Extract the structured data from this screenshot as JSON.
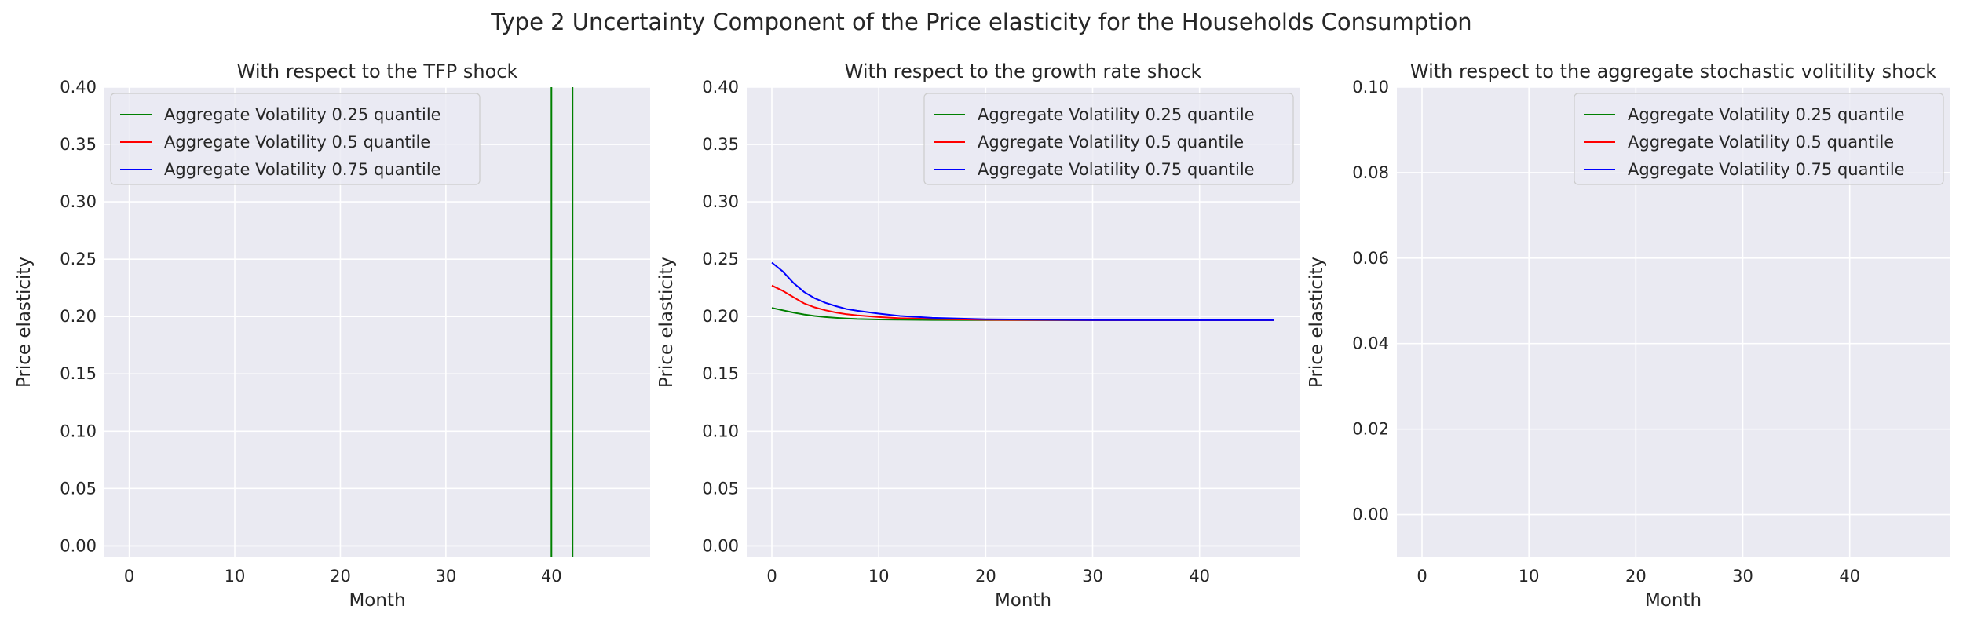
{
  "figure": {
    "title": "Type 2 Uncertainty Component of the Price elasticity for the Households Consumption",
    "background": "#ffffff",
    "axes_background": "#eaeaf2",
    "grid_color": "#ffffff"
  },
  "chart_data": [
    {
      "type": "line",
      "title": "With respect to the TFP shock",
      "xlabel": "Month",
      "ylabel": "Price elasticity",
      "xlim": [
        -2.35,
        49.35
      ],
      "ylim": [
        -0.01,
        0.4
      ],
      "xticks": [
        0,
        10,
        20,
        30,
        40
      ],
      "xtick_labels": [
        "0",
        "10",
        "20",
        "30",
        "40"
      ],
      "yticks": [
        0.0,
        0.05,
        0.1,
        0.15,
        0.2,
        0.25,
        0.3,
        0.35,
        0.4
      ],
      "ytick_labels": [
        "0.00",
        "0.05",
        "0.10",
        "0.15",
        "0.20",
        "0.25",
        "0.30",
        "0.35",
        "0.40"
      ],
      "grid": true,
      "legend": "upper-left",
      "series": [
        {
          "name": "Aggregate Volatility 0.25 quantile",
          "color": "#008000",
          "x": [
            40,
            40,
            42,
            42
          ],
          "y": [
            0.4,
            -0.01,
            -0.01,
            0.4
          ],
          "draw_segments": [
            [
              0,
              1
            ],
            [
              2,
              3
            ]
          ]
        },
        {
          "name": "Aggregate Volatility 0.5 quantile",
          "color": "#ff0000",
          "x": [],
          "y": []
        },
        {
          "name": "Aggregate Volatility 0.75 quantile",
          "color": "#0000ff",
          "x": [],
          "y": []
        }
      ]
    },
    {
      "type": "line",
      "title": "With respect to the growth rate shock",
      "xlabel": "Month",
      "ylabel": "Price elasticity",
      "xlim": [
        -2.35,
        49.35
      ],
      "ylim": [
        -0.01,
        0.4
      ],
      "xticks": [
        0,
        10,
        20,
        30,
        40
      ],
      "xtick_labels": [
        "0",
        "10",
        "20",
        "30",
        "40"
      ],
      "yticks": [
        0.0,
        0.05,
        0.1,
        0.15,
        0.2,
        0.25,
        0.3,
        0.35,
        0.4
      ],
      "ytick_labels": [
        "0.00",
        "0.05",
        "0.10",
        "0.15",
        "0.20",
        "0.25",
        "0.30",
        "0.35",
        "0.40"
      ],
      "grid": true,
      "legend": "upper-right",
      "series": [
        {
          "name": "Aggregate Volatility 0.25 quantile",
          "color": "#008000",
          "x": [
            0,
            1,
            2,
            3,
            4,
            5,
            6,
            7,
            8,
            10,
            12,
            15,
            20,
            30,
            40,
            47
          ],
          "y": [
            0.2075,
            0.2055,
            0.2035,
            0.2018,
            0.2005,
            0.1995,
            0.1988,
            0.1982,
            0.1978,
            0.1974,
            0.1972,
            0.197,
            0.1969,
            0.1968,
            0.1968,
            0.1968
          ]
        },
        {
          "name": "Aggregate Volatility 0.5 quantile",
          "color": "#ff0000",
          "x": [
            0,
            1,
            2,
            3,
            4,
            5,
            6,
            7,
            8,
            10,
            12,
            15,
            20,
            30,
            40,
            47
          ],
          "y": [
            0.227,
            0.2225,
            0.217,
            0.2115,
            0.208,
            0.2055,
            0.2035,
            0.202,
            0.201,
            0.1995,
            0.1985,
            0.1978,
            0.1971,
            0.1968,
            0.1968,
            0.1968
          ]
        },
        {
          "name": "Aggregate Volatility 0.75 quantile",
          "color": "#0000ff",
          "x": [
            0,
            1,
            2,
            3,
            4,
            5,
            6,
            7,
            8,
            10,
            12,
            15,
            20,
            30,
            40,
            47
          ],
          "y": [
            0.247,
            0.2395,
            0.2295,
            0.2215,
            0.216,
            0.212,
            0.209,
            0.2065,
            0.205,
            0.2025,
            0.2005,
            0.1988,
            0.1975,
            0.1969,
            0.1968,
            0.1968
          ]
        }
      ]
    },
    {
      "type": "line",
      "title": "With respect to the aggregate stochastic volitility shock",
      "xlabel": "Month",
      "ylabel": "Price elasticity",
      "xlim": [
        -2.35,
        49.35
      ],
      "ylim": [
        -0.01,
        0.1
      ],
      "xticks": [
        0,
        10,
        20,
        30,
        40
      ],
      "xtick_labels": [
        "0",
        "10",
        "20",
        "30",
        "40"
      ],
      "yticks": [
        0.0,
        0.02,
        0.04,
        0.06,
        0.08,
        0.1
      ],
      "ytick_labels": [
        "0.00",
        "0.02",
        "0.04",
        "0.06",
        "0.08",
        "0.10"
      ],
      "grid": true,
      "legend": "upper-right",
      "series": [
        {
          "name": "Aggregate Volatility 0.25 quantile",
          "color": "#008000",
          "x": [],
          "y": []
        },
        {
          "name": "Aggregate Volatility 0.5 quantile",
          "color": "#ff0000",
          "x": [],
          "y": []
        },
        {
          "name": "Aggregate Volatility 0.75 quantile",
          "color": "#0000ff",
          "x": [],
          "y": []
        }
      ]
    }
  ]
}
